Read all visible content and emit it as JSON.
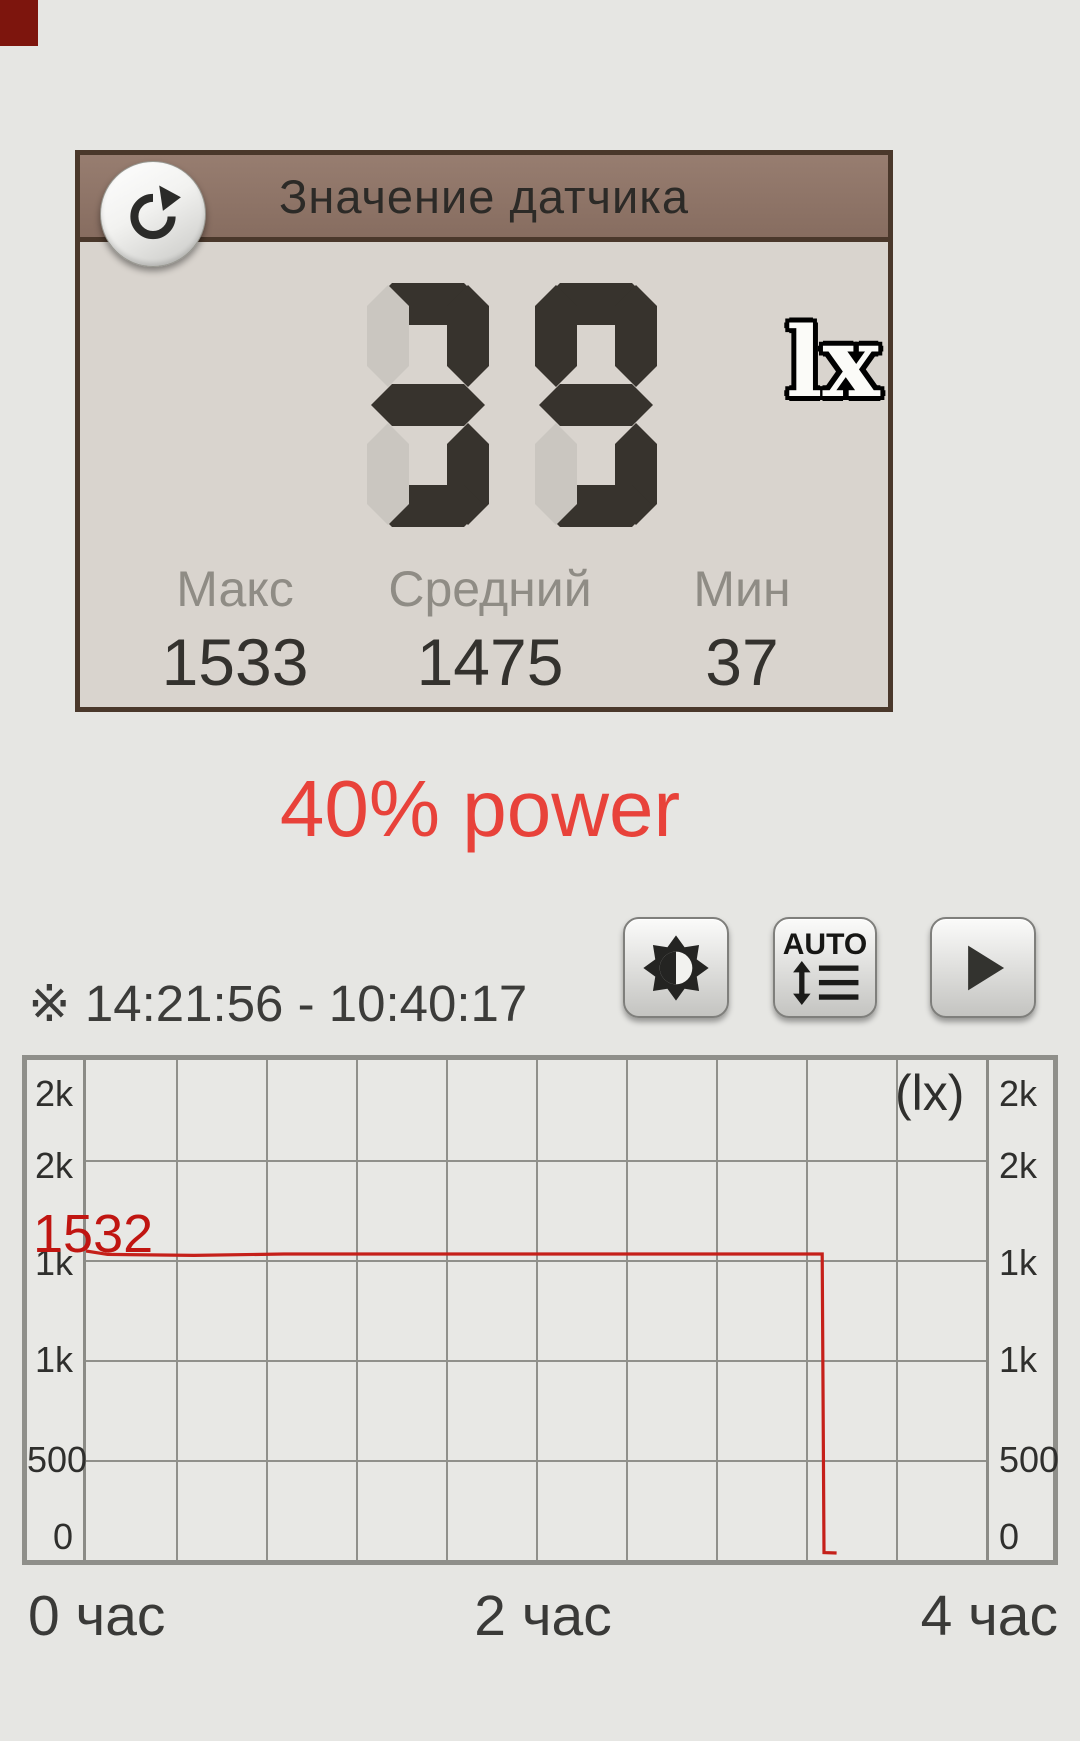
{
  "sensor_panel": {
    "title": "Значение датчика",
    "value": "39",
    "unit": "lx",
    "stats": [
      {
        "label": "Макс",
        "value": "1533"
      },
      {
        "label": "Средний",
        "value": "1475"
      },
      {
        "label": "Мин",
        "value": "37"
      }
    ]
  },
  "power_label": "40% power",
  "toolbar": {
    "time_range": "※ 14:21:56 - 10:40:17",
    "auto_button_label": "AUTO"
  },
  "chart_data": {
    "type": "line",
    "unit_label": "(lx)",
    "current_value_label": "1532",
    "x_tick_labels": [
      "0 час",
      "2 час",
      "4 час"
    ],
    "y_tick_labels": [
      "2k",
      "2k",
      "1k",
      "1k",
      "500",
      "0"
    ],
    "y_tick_values": [
      2500,
      2000,
      1500,
      1000,
      500,
      0
    ],
    "xlim_hours": [
      0,
      5
    ],
    "x_grid_step_hours": 0.5,
    "ylim": [
      0,
      2500
    ],
    "legend": "none",
    "grid": "on",
    "series": [
      {
        "name": "illuminance_lx",
        "color": "#c5201a",
        "points": [
          [
            0,
            1545
          ],
          [
            0.12,
            1528
          ],
          [
            0.6,
            1523
          ],
          [
            1.1,
            1530
          ],
          [
            4.09,
            1530
          ],
          [
            4.1,
            37
          ],
          [
            4.17,
            35
          ]
        ]
      }
    ]
  },
  "colors": {
    "accent_red": "#e8423a",
    "line_red": "#c5201a",
    "header_brown": "#8d7366",
    "panel_border_brown": "#4a382b",
    "panel_background": "#d9d4ce"
  }
}
